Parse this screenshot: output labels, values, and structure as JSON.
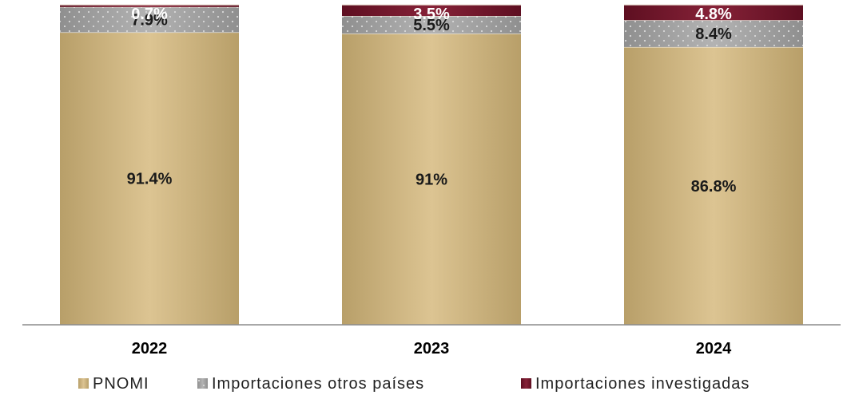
{
  "chart_data": {
    "type": "bar",
    "stacked": true,
    "categories": [
      "2022",
      "2023",
      "2024"
    ],
    "series": [
      {
        "name": "PNOMI",
        "values": [
          91.4,
          91,
          86.8
        ],
        "labels": [
          "91.4%",
          "91%",
          "86.8%"
        ],
        "color": "#cdb37c",
        "label_color": "#1a1a1a"
      },
      {
        "name": "Importaciones otros países",
        "values": [
          7.9,
          5.5,
          8.4
        ],
        "labels": [
          "7.9%",
          "5.5%",
          "8.4%"
        ],
        "color": "#a3a3a3",
        "label_color": "#1a1a1a"
      },
      {
        "name": "Importaciones investigadas",
        "values": [
          0.7,
          3.5,
          4.8
        ],
        "labels": [
          "0.7%",
          "3.5%",
          "4.8%"
        ],
        "color": "#7a1a2e",
        "label_color": "#ffffff"
      }
    ],
    "ylim": [
      0,
      100
    ],
    "grid": false,
    "legend_position": "bottom"
  }
}
